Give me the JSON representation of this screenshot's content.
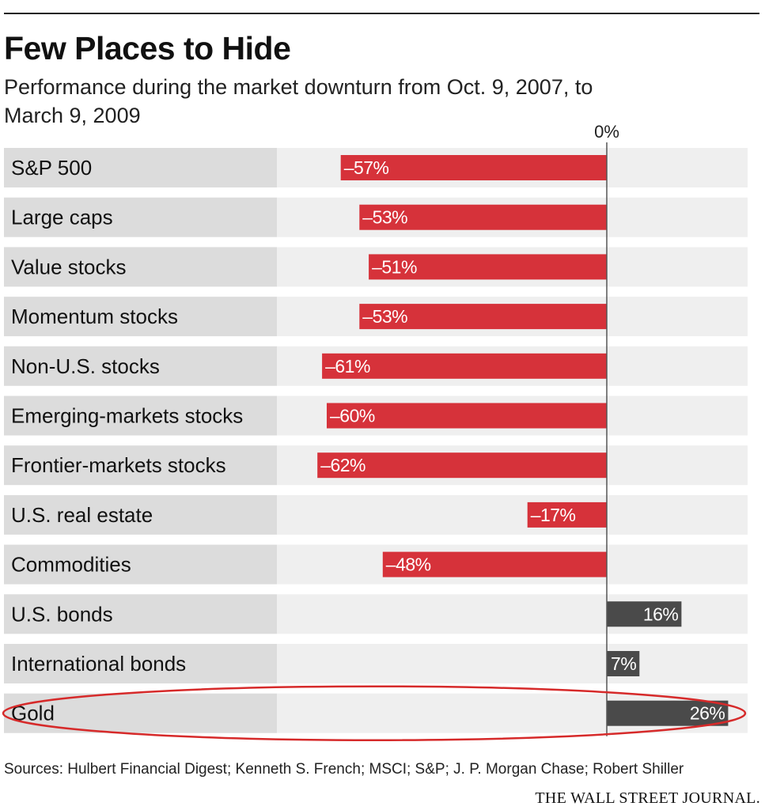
{
  "header": {
    "title": "Few Places to Hide",
    "subtitle": "Performance during the market downturn from Oct. 9, 2007, to March 9, 2009"
  },
  "footer": {
    "sources": "Sources: Hulbert Financial Digest; Kenneth S. French; MSCI; S&P; J. P. Morgan Chase; Robert Shiller",
    "publisher": "THE WALL STREET JOURNAL."
  },
  "colors": {
    "negative": "#d6323a",
    "positive": "#4a4a4a",
    "label_band": "#dcdcdc",
    "plot_band": "#efefef",
    "highlight": "#d62a2a"
  },
  "chart_data": {
    "type": "bar",
    "orientation": "horizontal",
    "zero_label": "0%",
    "unit": "%",
    "categories": [
      "S&P 500",
      "Large caps",
      "Value stocks",
      "Momentum stocks",
      "Non-U.S. stocks",
      "Emerging-markets stocks",
      "Frontier-markets stocks",
      "U.S. real estate",
      "Commodities",
      "U.S. bonds",
      "International bonds",
      "Gold"
    ],
    "values": [
      -57,
      -53,
      -51,
      -53,
      -61,
      -60,
      -62,
      -17,
      -48,
      16,
      7,
      26
    ],
    "value_labels": [
      "–57%",
      "–53%",
      "–51%",
      "–53%",
      "–61%",
      "–60%",
      "–62%",
      "–17%",
      "–48%",
      "16%",
      "7%",
      "26%"
    ],
    "highlighted": "Gold",
    "xlim": [
      -62,
      26
    ]
  }
}
